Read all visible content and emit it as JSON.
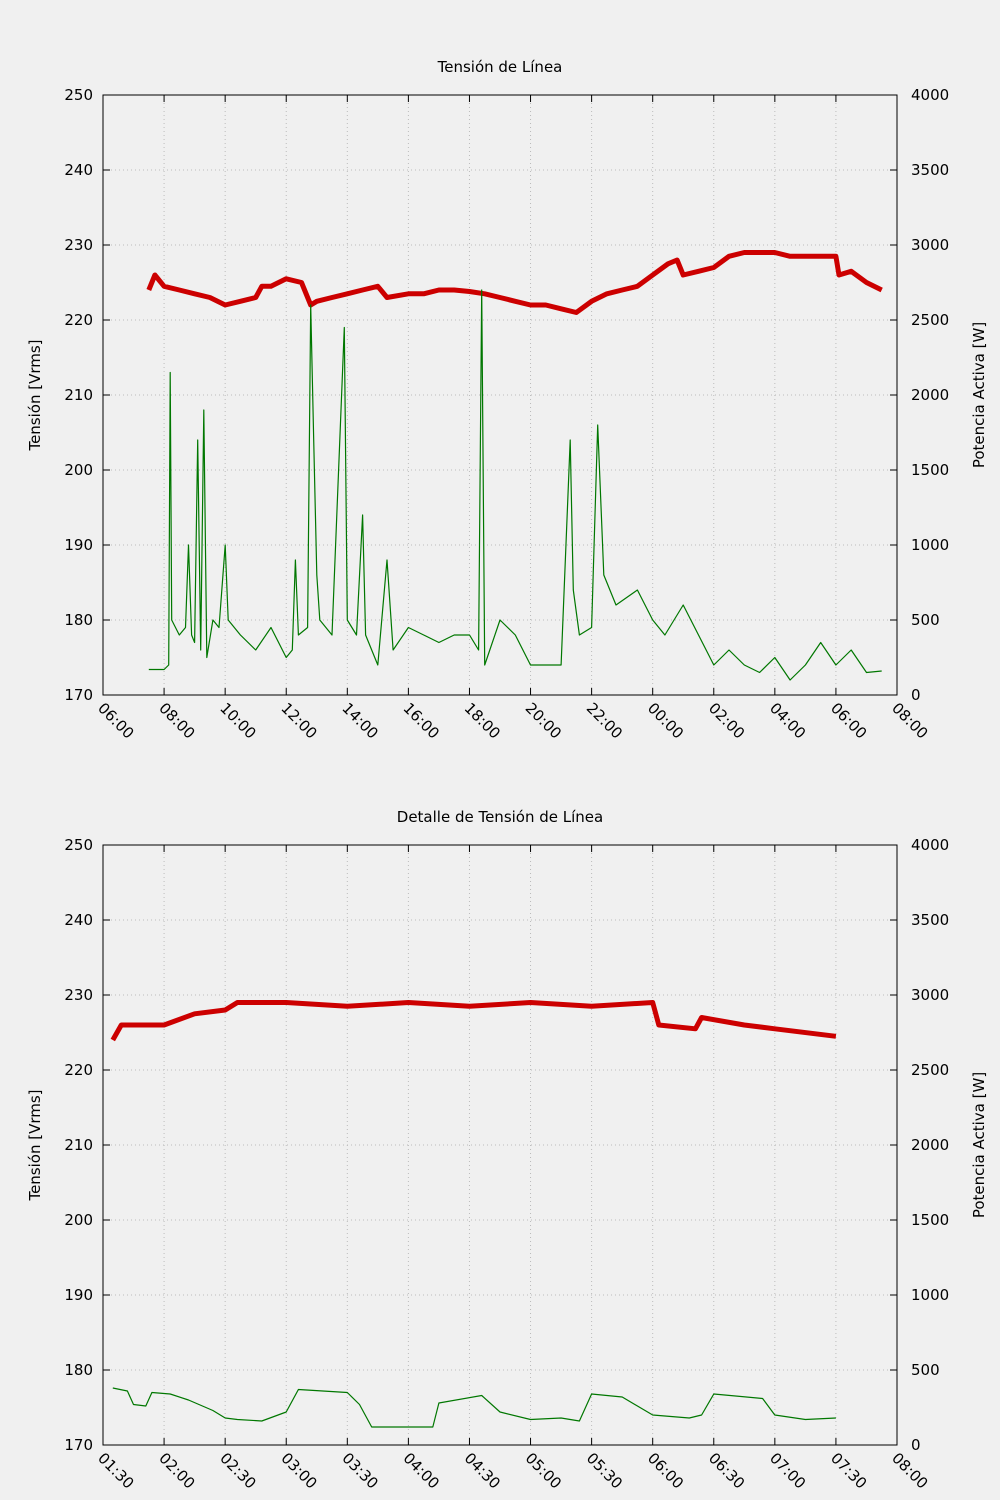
{
  "chart_data": [
    {
      "type": "line",
      "title": "Tensión de Línea",
      "ylabel": "Tensión [Vrms]",
      "y2label": "Potencia Activa [W]",
      "xlim": [
        6,
        32
      ],
      "xticks": [
        {
          "value": 6,
          "label": "06:00"
        },
        {
          "value": 8,
          "label": "08:00"
        },
        {
          "value": 10,
          "label": "10:00"
        },
        {
          "value": 12,
          "label": "12:00"
        },
        {
          "value": 14,
          "label": "14:00"
        },
        {
          "value": 16,
          "label": "16:00"
        },
        {
          "value": 18,
          "label": "18:00"
        },
        {
          "value": 20,
          "label": "20:00"
        },
        {
          "value": 22,
          "label": "22:00"
        },
        {
          "value": 24,
          "label": "00:00"
        },
        {
          "value": 26,
          "label": "02:00"
        },
        {
          "value": 28,
          "label": "04:00"
        },
        {
          "value": 30,
          "label": "06:00"
        },
        {
          "value": 32,
          "label": "08:00"
        }
      ],
      "ylim": [
        170,
        250
      ],
      "yticks": [
        170,
        180,
        190,
        200,
        210,
        220,
        230,
        240,
        250
      ],
      "y2lim": [
        0,
        4000
      ],
      "y2ticks": [
        0,
        500,
        1000,
        1500,
        2000,
        2500,
        3000,
        3500,
        4000
      ],
      "grid": true,
      "series": [
        {
          "color": "#cc0000",
          "axis": "y",
          "x": [
            7.5,
            7.7,
            8,
            8.5,
            9,
            9.5,
            10,
            10.5,
            11,
            11.2,
            11.5,
            12,
            12.5,
            12.8,
            13,
            13.5,
            14,
            14.5,
            15,
            15.3,
            16,
            16.5,
            17,
            17.5,
            18,
            18.5,
            19,
            19.5,
            20,
            20.5,
            21,
            21.5,
            22,
            22.5,
            23,
            23.5,
            24,
            24.5,
            24.8,
            25,
            25.5,
            26,
            26.5,
            27,
            27.5,
            28,
            28.5,
            29,
            29.5,
            30,
            30.1,
            30.5,
            31,
            31.5
          ],
          "values": [
            224,
            226,
            224.5,
            224,
            223.5,
            223,
            222,
            222.5,
            223,
            224.5,
            224.5,
            225.5,
            225,
            222,
            222.5,
            223,
            223.5,
            224,
            224.5,
            223,
            223.5,
            223.5,
            224,
            224,
            223.8,
            223.5,
            223,
            222.5,
            222,
            222,
            221.5,
            221,
            222.5,
            223.5,
            224,
            224.5,
            226,
            227.5,
            228,
            226,
            226.5,
            227,
            228.5,
            229,
            229,
            229,
            228.5,
            228.5,
            228.5,
            228.5,
            226,
            226.5,
            225,
            224
          ]
        },
        {
          "color": "#007700",
          "axis": "y2",
          "x": [
            7.5,
            8,
            8.15,
            8.2,
            8.25,
            8.5,
            8.7,
            8.8,
            8.9,
            9,
            9.1,
            9.2,
            9.3,
            9.4,
            9.6,
            9.8,
            10,
            10.1,
            10.5,
            11,
            11.5,
            12,
            12.2,
            12.3,
            12.4,
            12.7,
            12.8,
            12.9,
            13,
            13.1,
            13.5,
            13.9,
            14,
            14.3,
            14.5,
            14.6,
            14.8,
            15,
            15.3,
            15.5,
            16,
            16.5,
            17,
            17.5,
            18,
            18.3,
            18.4,
            18.5,
            19,
            19.5,
            20,
            20.5,
            21,
            21.3,
            21.4,
            21.6,
            22,
            22.2,
            22.4,
            22.8,
            23.5,
            24,
            24.4,
            25,
            25.5,
            26,
            26.5,
            27,
            27.5,
            28,
            28.5,
            29,
            29.5,
            30,
            30.5,
            31,
            31.5
          ],
          "values": [
            170,
            170,
            200,
            2150,
            500,
            400,
            450,
            1000,
            400,
            350,
            1700,
            300,
            1900,
            250,
            500,
            450,
            1000,
            500,
            400,
            300,
            450,
            250,
            300,
            900,
            400,
            450,
            2600,
            1700,
            800,
            500,
            400,
            2450,
            500,
            400,
            1200,
            400,
            300,
            200,
            900,
            300,
            450,
            400,
            350,
            400,
            400,
            300,
            2700,
            200,
            500,
            400,
            200,
            200,
            200,
            1700,
            700,
            400,
            450,
            1800,
            800,
            600,
            700,
            500,
            400,
            600,
            400,
            200,
            300,
            200,
            150,
            250,
            100,
            200,
            350,
            200,
            300,
            150,
            160
          ]
        }
      ]
    },
    {
      "type": "line",
      "title": "Detalle de Tensión de Línea",
      "ylabel": "Tensión [Vrms]",
      "y2label": "Potencia Activa [W]",
      "xlim": [
        1.5,
        8
      ],
      "xticks": [
        {
          "value": 1.5,
          "label": "01:30"
        },
        {
          "value": 2,
          "label": "02:00"
        },
        {
          "value": 2.5,
          "label": "02:30"
        },
        {
          "value": 3,
          "label": "03:00"
        },
        {
          "value": 3.5,
          "label": "03:30"
        },
        {
          "value": 4,
          "label": "04:00"
        },
        {
          "value": 4.5,
          "label": "04:30"
        },
        {
          "value": 5,
          "label": "05:00"
        },
        {
          "value": 5.5,
          "label": "05:30"
        },
        {
          "value": 6,
          "label": "06:00"
        },
        {
          "value": 6.5,
          "label": "06:30"
        },
        {
          "value": 7,
          "label": "07:00"
        },
        {
          "value": 7.5,
          "label": "07:30"
        },
        {
          "value": 8,
          "label": "08:00"
        }
      ],
      "ylim": [
        170,
        250
      ],
      "yticks": [
        170,
        180,
        190,
        200,
        210,
        220,
        230,
        240,
        250
      ],
      "y2lim": [
        0,
        4000
      ],
      "y2ticks": [
        0,
        500,
        1000,
        1500,
        2000,
        2500,
        3000,
        3500,
        4000
      ],
      "grid": true,
      "series": [
        {
          "color": "#cc0000",
          "axis": "y",
          "x": [
            1.58,
            1.65,
            2,
            2.25,
            2.5,
            2.6,
            3,
            3.5,
            4,
            4.5,
            5,
            5.5,
            6,
            6.05,
            6.35,
            6.4,
            6.75,
            7,
            7.5
          ],
          "values": [
            224,
            226,
            226,
            227.5,
            228,
            229,
            229,
            228.5,
            229,
            228.5,
            229,
            228.5,
            229,
            226,
            225.5,
            227,
            226,
            225.5,
            224.5
          ]
        },
        {
          "color": "#007700",
          "axis": "y2",
          "x": [
            1.58,
            1.7,
            1.75,
            1.85,
            1.9,
            2.05,
            2.2,
            2.4,
            2.5,
            2.6,
            2.8,
            3,
            3.1,
            3.5,
            3.6,
            3.7,
            4,
            4.2,
            4.25,
            4.6,
            4.75,
            5,
            5.25,
            5.4,
            5.5,
            5.75,
            6,
            6.3,
            6.4,
            6.5,
            6.9,
            7,
            7.25,
            7.5
          ],
          "values": [
            380,
            360,
            270,
            260,
            350,
            340,
            300,
            230,
            180,
            170,
            160,
            220,
            370,
            350,
            270,
            120,
            120,
            120,
            280,
            330,
            220,
            170,
            180,
            160,
            340,
            320,
            200,
            180,
            200,
            340,
            310,
            200,
            170,
            180
          ]
        }
      ]
    }
  ]
}
